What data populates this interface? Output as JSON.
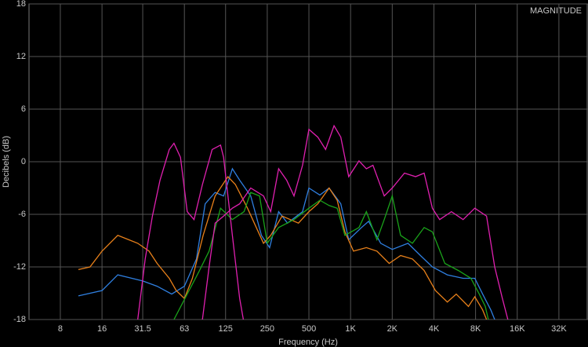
{
  "chart_data": {
    "type": "line",
    "title": "MAGNITUDE",
    "x_label": "Frequency (Hz)",
    "y_label": "Decibels (dB)",
    "log_x": true,
    "grid": true,
    "xlim": [
      4.75,
      51920
    ],
    "ylim": [
      -18,
      18
    ],
    "xticks": [
      8,
      16,
      31.5,
      63,
      125,
      250,
      500,
      {
        "value": 1000,
        "label": "1K"
      },
      {
        "value": 2000,
        "label": "2K"
      },
      {
        "value": 4000,
        "label": "4K"
      },
      {
        "value": 8000,
        "label": "8K"
      },
      {
        "value": 16000,
        "label": "16K"
      },
      {
        "value": 32000,
        "label": "32K"
      }
    ],
    "yticks": [
      18,
      12,
      6,
      0,
      -6,
      -12,
      -18
    ],
    "series": [
      {
        "color": "#2f7fe0",
        "x": [
          10.8,
          16,
          20.8,
          31.5,
          40,
          51,
          63,
          77,
          89,
          105,
          121,
          140,
          158,
          190,
          227,
          260,
          302,
          350,
          450,
          500,
          600,
          700,
          850,
          970,
          1200,
          1350,
          1650,
          2000,
          2600,
          3200,
          3900,
          5000,
          6500,
          7900,
          9000,
          10300,
          11000
        ],
        "values": [
          -15.3,
          -14.7,
          -12.9,
          -13.6,
          -14.2,
          -15.1,
          -14.2,
          -11.1,
          -4.8,
          -3.5,
          -3.9,
          -0.8,
          -2.1,
          -3.9,
          -8.4,
          -9.8,
          -5.7,
          -7,
          -5.7,
          -3,
          -3.8,
          -3,
          -4.8,
          -8.9,
          -7.5,
          -6.8,
          -9.3,
          -10,
          -9.3,
          -10.7,
          -12,
          -12.9,
          -13.3,
          -13.3,
          -15.1,
          -16.9,
          -18
        ]
      },
      {
        "color": "#e8801a",
        "x": [
          10.8,
          13.1,
          16,
          20.8,
          25,
          29,
          35,
          40,
          49,
          55,
          63,
          72,
          86,
          105,
          130,
          147,
          180,
          235,
          265,
          320,
          420,
          500,
          580,
          700,
          800,
          910,
          1050,
          1300,
          1550,
          1900,
          2300,
          2800,
          3400,
          4100,
          5000,
          5800,
          7100,
          7900,
          9000,
          9600
        ],
        "values": [
          -12.3,
          -12,
          -10.2,
          -8.4,
          -8.9,
          -9.3,
          -10.2,
          -11.6,
          -13.3,
          -14.7,
          -15.6,
          -13.3,
          -8.4,
          -3.9,
          -1.7,
          -2.6,
          -5.3,
          -9.3,
          -8.4,
          -6.2,
          -7,
          -5.7,
          -4.8,
          -3,
          -4.4,
          -8,
          -10.2,
          -9.8,
          -10.2,
          -11.6,
          -10.7,
          -11.1,
          -12.4,
          -14.7,
          -16,
          -15.1,
          -16.5,
          -15.4,
          -16.9,
          -18
        ]
      },
      {
        "color": "#1aa31a",
        "x": [
          53,
          66,
          81,
          95,
          115,
          140,
          170,
          190,
          220,
          250,
          302,
          390,
          500,
          600,
          700,
          800,
          910,
          1150,
          1300,
          1550,
          1750,
          2000,
          2300,
          2800,
          3400,
          3900,
          4800,
          6000,
          7400,
          8500,
          9400,
          9900
        ],
        "values": [
          -18,
          -15.1,
          -12.4,
          -10.2,
          -5.3,
          -6.6,
          -5.7,
          -3.5,
          -3.9,
          -9.3,
          -7.5,
          -6.6,
          -5.3,
          -4.4,
          -5,
          -5.3,
          -8.4,
          -7.5,
          -5.7,
          -8.9,
          -6.6,
          -3.9,
          -8.4,
          -9.3,
          -7.5,
          -8,
          -11.6,
          -12.4,
          -13.3,
          -15.1,
          -16.5,
          -18
        ]
      },
      {
        "color": "#e020b0",
        "x": [
          29,
          32.8,
          37,
          42,
          49,
          53,
          59,
          66,
          74,
          85,
          100,
          115,
          121,
          140,
          158,
          168
        ],
        "values": [
          -18,
          -11.1,
          -6.2,
          -2.1,
          1.4,
          2.1,
          0.5,
          -5.7,
          -6.6,
          -2.6,
          1.4,
          1.9,
          0.5,
          -8.4,
          -15.6,
          -18
        ]
      },
      {
        "color": "#e020b0",
        "x": [
          85,
          95,
          105,
          121,
          140,
          158,
          190,
          235,
          265,
          302,
          345,
          390,
          450,
          500,
          580,
          660,
          760,
          850,
          970,
          1150,
          1300,
          1450,
          1750,
          2000,
          2450,
          2950,
          3400,
          3900,
          4400,
          5350,
          6500,
          7900,
          9600,
          11000,
          12500,
          13700
        ],
        "values": [
          -18,
          -12,
          -7,
          -6.2,
          -5.3,
          -4.8,
          -3,
          -3.9,
          -5.7,
          -0.8,
          -2.1,
          -3.9,
          -0.4,
          3.7,
          2.8,
          1.4,
          4.1,
          2.8,
          -1.7,
          0.1,
          -0.8,
          -0.4,
          -3.9,
          -3,
          -1.3,
          -1.7,
          -1.3,
          -5.3,
          -6.6,
          -5.7,
          -6.6,
          -5.3,
          -6.2,
          -12,
          -15.6,
          -18
        ]
      }
    ]
  }
}
